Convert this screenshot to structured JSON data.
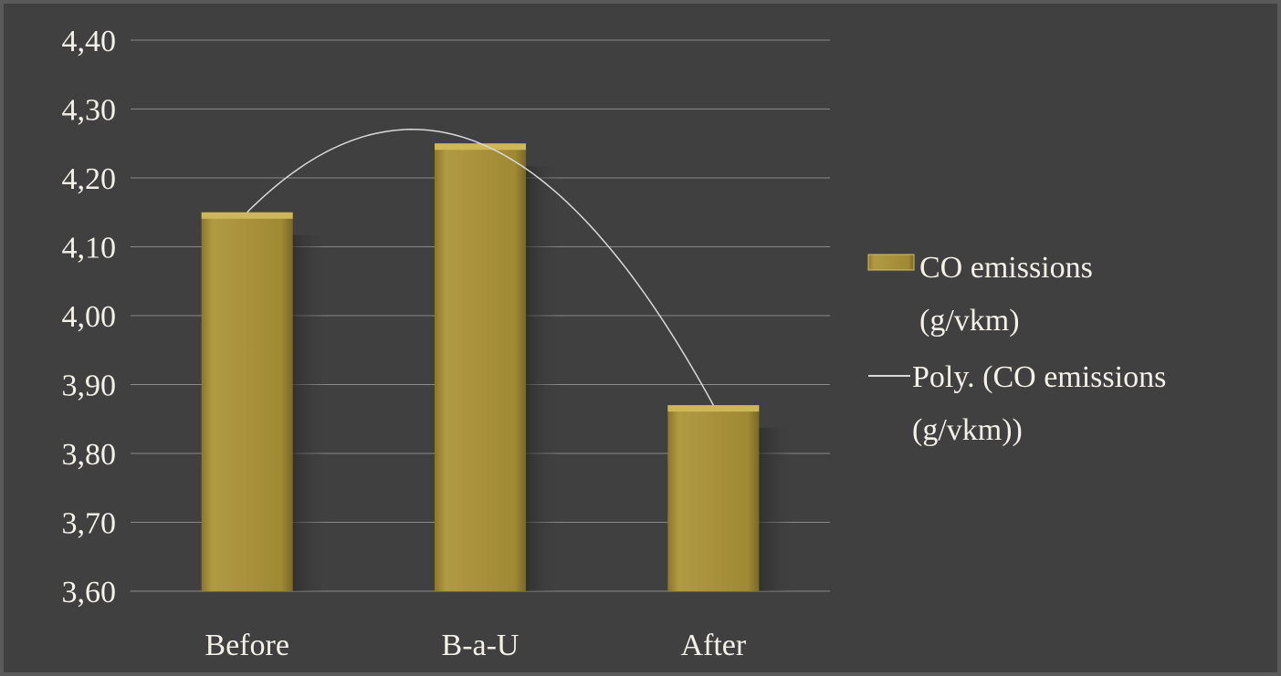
{
  "chart_data": {
    "type": "bar",
    "categories": [
      "Before",
      "B-a-U",
      "After"
    ],
    "series": [
      {
        "name": "CO emissions (g/vkm)",
        "values": [
          4.15,
          4.25,
          3.87
        ],
        "color": "#a8913a"
      }
    ],
    "trendline": {
      "name": "Poly. (CO emissions (g/vkm))",
      "kind": "polynomial",
      "order": 2,
      "color": "#d9d9d9"
    },
    "ylim": [
      3.6,
      4.4
    ],
    "yticks": [
      3.6,
      3.7,
      3.8,
      3.9,
      4.0,
      4.1,
      4.2,
      4.3,
      4.4
    ],
    "ytick_labels": [
      "3,60",
      "3,70",
      "3,80",
      "3,90",
      "4,00",
      "4,10",
      "4,20",
      "4,30",
      "4,40"
    ],
    "grid": true,
    "legend_position": "right",
    "title": "",
    "xlabel": "",
    "ylabel": ""
  },
  "legend": {
    "bar_line1": "CO emissions",
    "bar_line2": "(g/vkm)",
    "trend_line1": "Poly. (CO emissions",
    "trend_line2": "(g/vkm))"
  },
  "colors": {
    "background": "#404040",
    "grid": "#8a8a8a",
    "text": "#f4f1e8"
  }
}
